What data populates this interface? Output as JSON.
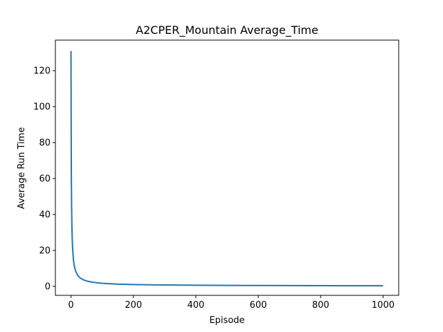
{
  "chart_data": {
    "type": "line",
    "title": "A2CPER_Mountain Average_Time",
    "xlabel": "Episode",
    "ylabel": "Average Run Time",
    "xlim": [
      -50,
      1050
    ],
    "ylim": [
      -5,
      137
    ],
    "xticks": [
      0,
      200,
      400,
      600,
      800,
      1000
    ],
    "yticks": [
      0,
      20,
      40,
      60,
      80,
      100,
      120
    ],
    "xtick_labels": [
      "0",
      "200",
      "400",
      "600",
      "800",
      "1000"
    ],
    "ytick_labels": [
      "0",
      "20",
      "40",
      "60",
      "80",
      "100",
      "120"
    ],
    "grid": false,
    "legend": false,
    "series": [
      {
        "color": "#1f77b4",
        "x": [
          0,
          1,
          2,
          3,
          4,
          5,
          6,
          8,
          10,
          12,
          15,
          20,
          25,
          30,
          40,
          50,
          60,
          80,
          100,
          150,
          200,
          250,
          300,
          400,
          500,
          600,
          700,
          800,
          900,
          1000
        ],
        "y": [
          131,
          66,
          44,
          33,
          26.5,
          22,
          19,
          14.7,
          12,
          10.2,
          8.5,
          6.6,
          5.4,
          4.6,
          3.6,
          3.0,
          2.6,
          2.05,
          1.7,
          1.25,
          1.0,
          0.86,
          0.76,
          0.62,
          0.53,
          0.47,
          0.43,
          0.39,
          0.36,
          0.34
        ]
      }
    ]
  }
}
